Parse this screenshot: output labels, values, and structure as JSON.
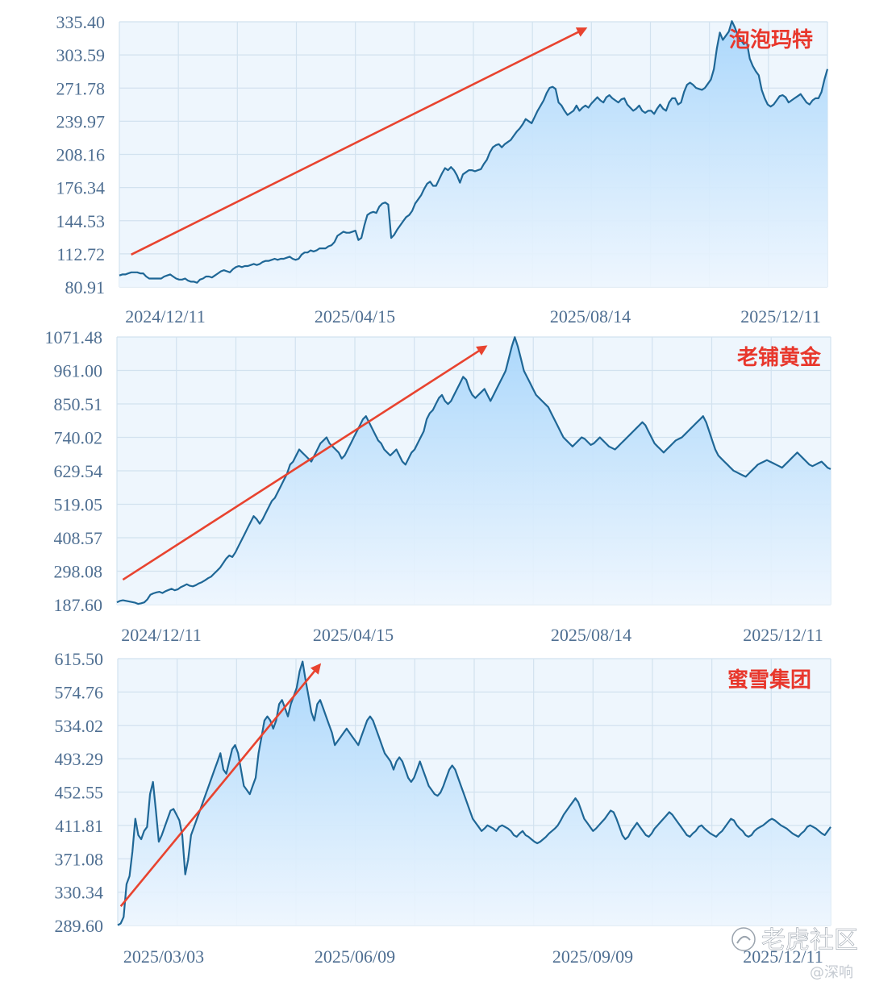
{
  "chart_data": [
    {
      "type": "area",
      "title": "泡泡玛特",
      "y_ticks": [
        "80.91",
        "112.72",
        "144.53",
        "176.34",
        "208.16",
        "239.97",
        "271.78",
        "303.59",
        "335.40"
      ],
      "ylim": [
        80.91,
        335.4
      ],
      "x_ticks": [
        "2024/12/11",
        "2025/04/15",
        "2025/08/14",
        "2025/12/11"
      ],
      "x_index_range": [
        0,
        240
      ],
      "grid": true,
      "trend_arrow": {
        "from": [
          4,
          112
        ],
        "to": [
          158,
          329
        ]
      },
      "series": [
        {
          "values": [
            92,
            93,
            93,
            94,
            95,
            95,
            95,
            94,
            94,
            91,
            89,
            89,
            89,
            89,
            89,
            91,
            92,
            93,
            91,
            89,
            88,
            88,
            89,
            87,
            86,
            86,
            85,
            88,
            89,
            91,
            91,
            90,
            92,
            94,
            96,
            97,
            96,
            95,
            98,
            100,
            101,
            100,
            101,
            101,
            102,
            103,
            102,
            103,
            105,
            106,
            106,
            107,
            108,
            107,
            108,
            108,
            109,
            110,
            108,
            107,
            108,
            112,
            114,
            114,
            116,
            115,
            116,
            118,
            118,
            118,
            120,
            121,
            124,
            130,
            132,
            134,
            133,
            133,
            134,
            135,
            126,
            128,
            140,
            150,
            152,
            153,
            152,
            158,
            161,
            162,
            160,
            128,
            131,
            136,
            140,
            144,
            148,
            150,
            154,
            161,
            165,
            169,
            175,
            180,
            182,
            178,
            178,
            184,
            190,
            195,
            193,
            196,
            193,
            188,
            181,
            189,
            191,
            193,
            193,
            192,
            193,
            194,
            199,
            203,
            210,
            215,
            217,
            218,
            215,
            218,
            220,
            222,
            226,
            230,
            233,
            237,
            242,
            240,
            238,
            244,
            250,
            255,
            260,
            267,
            272,
            273,
            271,
            258,
            255,
            250,
            246,
            248,
            250,
            255,
            250,
            253,
            255,
            253,
            257,
            260,
            263,
            260,
            258,
            263,
            265,
            262,
            260,
            258,
            261,
            262,
            256,
            253,
            250,
            252,
            255,
            250,
            248,
            250,
            250,
            247,
            252,
            256,
            252,
            250,
            258,
            262,
            262,
            256,
            258,
            268,
            275,
            277,
            275,
            272,
            271,
            270,
            272,
            276,
            280,
            290,
            310,
            325,
            318,
            322,
            326,
            336,
            330,
            322,
            318,
            314,
            316,
            300,
            293,
            288,
            284,
            270,
            262,
            256,
            254,
            256,
            260,
            264,
            265,
            263,
            258,
            260,
            262,
            264,
            266,
            262,
            258,
            256,
            260,
            262,
            262,
            268,
            280,
            290
          ]
        }
      ]
    },
    {
      "type": "area",
      "title": "老铺黄金",
      "y_ticks": [
        "187.60",
        "298.08",
        "408.57",
        "519.05",
        "629.54",
        "740.02",
        "850.51",
        "961.00",
        "1071.48"
      ],
      "ylim": [
        187.6,
        1071.48
      ],
      "x_ticks": [
        "2024/12/11",
        "2025/04/15",
        "2025/08/14",
        "2025/12/11"
      ],
      "x_index_range": [
        0,
        240
      ],
      "grid": true,
      "trend_arrow": {
        "from": [
          2,
          270
        ],
        "to": [
          124,
          1040
        ]
      },
      "series": [
        {
          "values": [
            195,
            200,
            202,
            200,
            198,
            196,
            194,
            190,
            192,
            195,
            205,
            220,
            225,
            228,
            230,
            226,
            232,
            236,
            240,
            235,
            238,
            245,
            250,
            255,
            250,
            248,
            252,
            258,
            262,
            268,
            275,
            280,
            290,
            300,
            310,
            325,
            340,
            350,
            345,
            360,
            380,
            400,
            420,
            440,
            460,
            480,
            470,
            455,
            470,
            490,
            510,
            530,
            540,
            560,
            580,
            600,
            620,
            650,
            660,
            680,
            700,
            690,
            680,
            670,
            660,
            680,
            700,
            720,
            730,
            740,
            720,
            710,
            700,
            690,
            670,
            680,
            700,
            720,
            740,
            760,
            780,
            800,
            810,
            790,
            770,
            750,
            730,
            720,
            700,
            690,
            680,
            690,
            700,
            680,
            660,
            650,
            670,
            690,
            700,
            720,
            740,
            760,
            800,
            820,
            830,
            850,
            870,
            880,
            860,
            850,
            860,
            880,
            900,
            920,
            940,
            930,
            900,
            880,
            870,
            880,
            890,
            900,
            880,
            860,
            880,
            900,
            920,
            940,
            960,
            1000,
            1040,
            1071,
            1040,
            1000,
            960,
            940,
            920,
            900,
            880,
            870,
            860,
            850,
            840,
            820,
            800,
            780,
            760,
            740,
            730,
            720,
            710,
            720,
            730,
            740,
            735,
            725,
            715,
            720,
            730,
            740,
            730,
            720,
            710,
            705,
            700,
            710,
            720,
            730,
            740,
            750,
            760,
            770,
            780,
            790,
            780,
            760,
            740,
            720,
            710,
            700,
            690,
            700,
            710,
            720,
            730,
            735,
            740,
            750,
            760,
            770,
            780,
            790,
            800,
            810,
            790,
            760,
            730,
            700,
            680,
            670,
            660,
            650,
            640,
            630,
            625,
            620,
            615,
            610,
            620,
            630,
            640,
            650,
            655,
            660,
            665,
            660,
            655,
            650,
            645,
            640,
            650,
            660,
            670,
            680,
            690,
            680,
            670,
            660,
            650,
            645,
            650,
            655,
            660,
            650,
            640,
            635
          ]
        }
      ]
    },
    {
      "type": "area",
      "title": "蜜雪集团",
      "y_ticks": [
        "289.60",
        "330.34",
        "371.08",
        "411.81",
        "452.55",
        "493.29",
        "534.02",
        "574.76",
        "615.50"
      ],
      "ylim": [
        289.6,
        615.5
      ],
      "x_ticks": [
        "2025/03/03",
        "2025/06/09",
        "2025/09/09",
        "2025/12/11"
      ],
      "x_index_range": [
        0,
        240
      ],
      "grid": true,
      "trend_arrow": {
        "from": [
          1,
          313
        ],
        "to": [
          68,
          608
        ]
      },
      "series": [
        {
          "values": [
            290,
            292,
            300,
            340,
            350,
            380,
            420,
            400,
            395,
            405,
            410,
            450,
            465,
            430,
            392,
            400,
            410,
            420,
            430,
            432,
            425,
            418,
            400,
            352,
            370,
            400,
            410,
            420,
            430,
            440,
            450,
            460,
            470,
            480,
            490,
            500,
            480,
            475,
            490,
            505,
            510,
            500,
            480,
            460,
            455,
            450,
            460,
            470,
            500,
            520,
            540,
            545,
            540,
            530,
            540,
            560,
            565,
            555,
            545,
            560,
            570,
            580,
            600,
            612,
            590,
            570,
            550,
            540,
            560,
            565,
            555,
            545,
            535,
            525,
            510,
            515,
            520,
            525,
            530,
            525,
            520,
            515,
            510,
            520,
            530,
            540,
            545,
            540,
            530,
            520,
            510,
            500,
            495,
            490,
            480,
            490,
            495,
            490,
            480,
            470,
            465,
            470,
            480,
            490,
            480,
            470,
            460,
            455,
            450,
            448,
            452,
            460,
            470,
            480,
            485,
            480,
            470,
            460,
            450,
            440,
            430,
            420,
            415,
            410,
            405,
            408,
            412,
            410,
            408,
            405,
            410,
            412,
            410,
            408,
            405,
            400,
            398,
            402,
            405,
            400,
            398,
            395,
            392,
            390,
            392,
            395,
            398,
            402,
            405,
            408,
            412,
            418,
            425,
            430,
            435,
            440,
            445,
            440,
            430,
            420,
            415,
            410,
            405,
            408,
            412,
            416,
            420,
            425,
            430,
            428,
            420,
            410,
            400,
            395,
            398,
            405,
            410,
            415,
            410,
            405,
            400,
            398,
            402,
            408,
            412,
            416,
            420,
            424,
            428,
            425,
            420,
            415,
            410,
            405,
            400,
            398,
            402,
            405,
            410,
            412,
            408,
            405,
            402,
            400,
            398,
            402,
            405,
            410,
            415,
            420,
            418,
            412,
            408,
            405,
            400,
            398,
            400,
            405,
            408,
            410,
            412,
            415,
            418,
            420,
            418,
            415,
            412,
            410,
            408,
            405,
            402,
            400,
            398,
            402,
            405,
            410,
            412,
            410,
            408,
            405,
            402,
            400,
            405,
            410
          ]
        }
      ]
    }
  ],
  "watermark": {
    "brand": "老虎社区",
    "user": "@深响"
  },
  "colors": {
    "line": "#1f6796",
    "fill_top": "#a8d6fb",
    "fill_bottom": "#edf6fe",
    "plot_bg": "#eef6fd",
    "grid": "#d2e2ef",
    "arrow": "#e8432f",
    "title": "#e8372c",
    "tick_text": "#4f6f92"
  }
}
